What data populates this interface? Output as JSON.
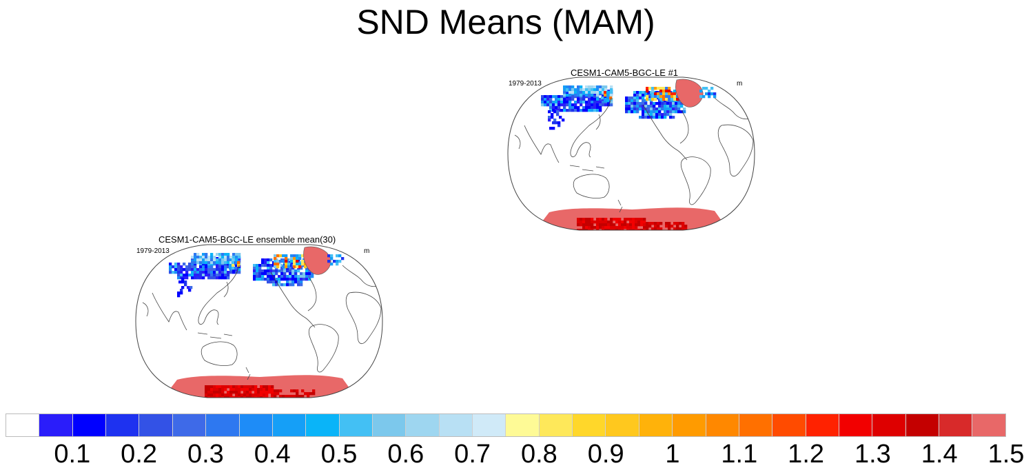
{
  "figure": {
    "title": "SND Means (MAM)"
  },
  "panels": [
    {
      "title": "CESM1-CAM5-BGC-LE #1",
      "period": "1979-2013",
      "units": "m"
    },
    {
      "title": "CESM1-CAM5-BGC-LE ensemble mean(30)",
      "period": "1979-2013",
      "units": "m"
    }
  ],
  "colorbar": {
    "colors": [
      "#ffffff",
      "#2a1dfa",
      "#0000ff",
      "#1e32f0",
      "#3352e6",
      "#3e6ae8",
      "#2e78f0",
      "#1e8cf7",
      "#159ff7",
      "#0ab4f8",
      "#43c0f4",
      "#7cc8ec",
      "#9ed6f0",
      "#b8e0f4",
      "#d0eaf8",
      "#fefa96",
      "#fee85a",
      "#ffd72a",
      "#ffc81e",
      "#ffb20a",
      "#ff9b00",
      "#ff8800",
      "#ff7000",
      "#ff4b00",
      "#ff2200",
      "#f20000",
      "#de0000",
      "#c40000",
      "#d82a2a",
      "#e86868"
    ],
    "labels": [
      "0.1",
      "0.2",
      "0.3",
      "0.4",
      "0.5",
      "0.6",
      "0.7",
      "0.8",
      "0.9",
      "1",
      "1.1",
      "1.2",
      "1.3",
      "1.4",
      "1.5"
    ],
    "levels": [
      0.05,
      0.1,
      0.15,
      0.2,
      0.25,
      0.3,
      0.35,
      0.4,
      0.45,
      0.5,
      0.55,
      0.6,
      0.65,
      0.7,
      0.75,
      0.8,
      0.85,
      0.9,
      0.95,
      1.0,
      1.05,
      1.1,
      1.15,
      1.2,
      1.25,
      1.3,
      1.35,
      1.4,
      1.45,
      1.5
    ]
  }
}
